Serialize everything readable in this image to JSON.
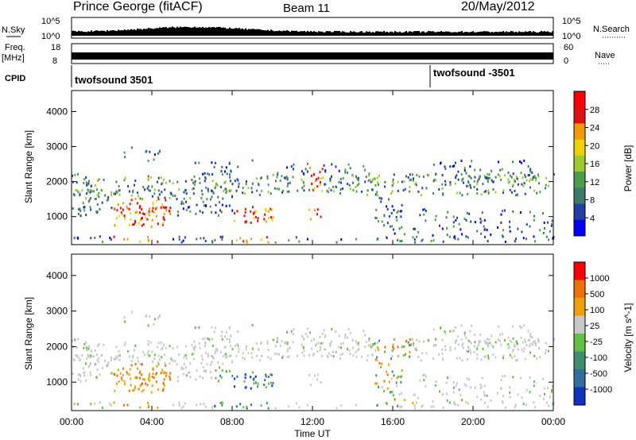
{
  "header": {
    "station": "Prince George (fitACF)",
    "beam": "Beam 11",
    "date": "20/May/2012"
  },
  "panels": {
    "nsky_label": "N.Sky",
    "nsky_ticks": [
      "10^5",
      "10^0"
    ],
    "nsearch_label": "N.Search",
    "nsearch_ticks": [
      "10^5",
      "10^0"
    ],
    "freq_label": "Freq.",
    "freq_unit": "[MHz]",
    "freq_ticks": [
      "18",
      "8"
    ],
    "nave_label": "Nave",
    "nave_ticks": [
      "60",
      "0"
    ],
    "cpid_label": "CPID",
    "cpid_segments": [
      "twofsound 3501",
      "twofsound -3501"
    ]
  },
  "chart_data": [
    {
      "type": "heatmap",
      "name": "power",
      "ylabel": "Slant Range [km]",
      "yticks": [
        "1000",
        "2000",
        "3000",
        "4000"
      ],
      "ylim": [
        200,
        4600
      ],
      "colorbar_label": "Power [dB]",
      "colorbar_ticks": [
        "4",
        "8",
        "12",
        "16",
        "20",
        "24",
        "28"
      ],
      "colors": [
        "#0000ff",
        "#1f3fa8",
        "#3c7a6a",
        "#4aa04a",
        "#9dcc2a",
        "#f2d000",
        "#f39a00",
        "#e01010",
        "#ff0000"
      ]
    },
    {
      "type": "heatmap",
      "name": "velocity",
      "ylabel": "Slant Range [km]",
      "yticks": [
        "1000",
        "2000",
        "3000",
        "4000"
      ],
      "ylim": [
        200,
        4600
      ],
      "xlabel": "Time UT",
      "xticks": [
        "00:00",
        "04:00",
        "08:00",
        "12:00",
        "16:00",
        "20:00",
        "00:00"
      ],
      "xlim": [
        0,
        24
      ],
      "colorbar_label": "Velocity [m s^-1]",
      "colorbar_ticks": [
        "1000",
        "500",
        "100",
        "25",
        "-25",
        "-100",
        "-500",
        "-1000"
      ],
      "colors": [
        "#1030c0",
        "#2e6ea0",
        "#3c9070",
        "#60c040",
        "#c8c8c8",
        "#f0a000",
        "#f07000",
        "#ff0000"
      ]
    }
  ]
}
